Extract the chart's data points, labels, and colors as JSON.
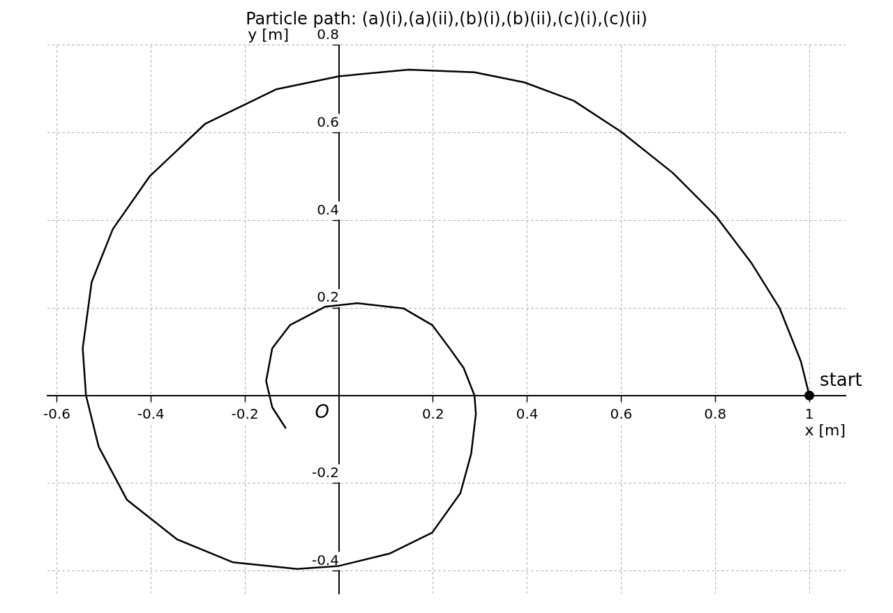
{
  "chart_data": {
    "type": "line",
    "title": "Particle path: (a)(i),(a)(ii),(b)(i),(b)(ii),(c)(i),(c)(ii)",
    "xlabel": "x [m]",
    "ylabel": "y [m]",
    "xlim": [
      -0.62,
      1.077
    ],
    "ylim": [
      -0.452,
      0.8
    ],
    "xticks": [
      -0.6,
      -0.4,
      -0.2,
      0.2,
      0.4,
      0.6,
      0.8,
      1
    ],
    "yticks": [
      -0.4,
      -0.2,
      0.2,
      0.4,
      0.6,
      0.8
    ],
    "grid": true,
    "legend": false,
    "series": [
      {
        "color": "#000000",
        "marker": "none",
        "x": [
          1,
          0.982,
          0.937,
          0.876,
          0.801,
          0.71,
          0.6,
          0.499,
          0.394,
          0.288,
          0.148,
          0,
          -0.134,
          -0.285,
          -0.403,
          -0.481,
          -0.526,
          -0.545,
          -0.538,
          -0.511,
          -0.451,
          -0.345,
          -0.225,
          -0.089,
          0,
          0.107,
          0.198,
          0.258,
          0.281,
          0.291,
          0.288,
          0.265,
          0.235,
          0.198,
          0.137,
          0.039,
          -0.029,
          -0.104,
          -0.142,
          -0.155,
          -0.142,
          -0.113
        ],
        "values": [
          0,
          0.078,
          0.199,
          0.304,
          0.41,
          0.508,
          0.602,
          0.673,
          0.715,
          0.738,
          0.744,
          0.729,
          0.699,
          0.62,
          0.5,
          0.38,
          0.259,
          0.108,
          0,
          -0.117,
          -0.238,
          -0.328,
          -0.381,
          -0.396,
          -0.389,
          -0.361,
          -0.313,
          -0.223,
          -0.133,
          -0.042,
          0,
          0.063,
          0.108,
          0.161,
          0.199,
          0.211,
          0.203,
          0.161,
          0.108,
          0.033,
          -0.027,
          -0.075
        ]
      },
      {
        "type": "scatter",
        "color": "#000000",
        "marker": "circle",
        "x": [
          1
        ],
        "values": [
          0
        ]
      }
    ],
    "annotations": [
      {
        "text": "start",
        "x": 1,
        "y": 0
      },
      "O"
    ]
  }
}
